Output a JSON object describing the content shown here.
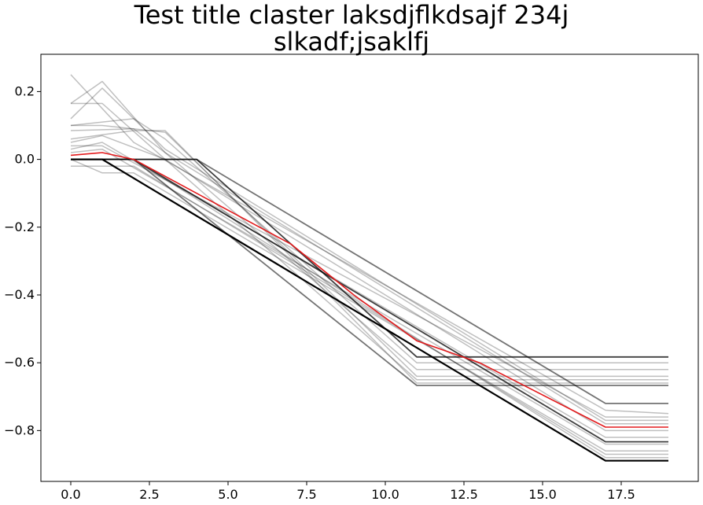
{
  "chart_data": {
    "type": "line",
    "title": [
      "Test title claster laksdjflkdsajf 234j",
      "slkadf;jsaklfj"
    ],
    "xlabel": "",
    "ylabel": "",
    "xlim": [
      -0.95,
      19.95
    ],
    "ylim": [
      -0.95,
      0.31
    ],
    "grid": false,
    "x_ticks": [
      0.0,
      2.5,
      5.0,
      7.5,
      10.0,
      12.5,
      15.0,
      17.5
    ],
    "x_tick_labels": [
      "0.0",
      "2.5",
      "5.0",
      "7.5",
      "10.0",
      "12.5",
      "15.0",
      "17.5"
    ],
    "y_ticks": [
      0.2,
      0.0,
      -0.2,
      -0.4,
      -0.6,
      -0.8
    ],
    "y_tick_labels": [
      "0.2",
      "0.0",
      "−0.2",
      "−0.4",
      "−0.6",
      "−0.8"
    ],
    "series": [
      {
        "color": "#000000",
        "opacity": 0.25,
        "width": 1.5,
        "points": [
          [
            0,
            0.25
          ],
          [
            2,
            0.05
          ],
          [
            17,
            -0.74
          ],
          [
            19,
            -0.75
          ]
        ]
      },
      {
        "color": "#000000",
        "opacity": 0.25,
        "width": 1.5,
        "points": [
          [
            0,
            0.165
          ],
          [
            1,
            0.23
          ],
          [
            3,
            0.02
          ],
          [
            17,
            -0.78
          ],
          [
            19,
            -0.78
          ]
        ]
      },
      {
        "color": "#000000",
        "opacity": 0.25,
        "width": 1.5,
        "points": [
          [
            0,
            0.165
          ],
          [
            1,
            0.165
          ],
          [
            3,
            0.0
          ],
          [
            17,
            -0.8
          ],
          [
            19,
            -0.8
          ]
        ]
      },
      {
        "color": "#000000",
        "opacity": 0.25,
        "width": 1.5,
        "points": [
          [
            0,
            0.12
          ],
          [
            1,
            0.21
          ],
          [
            3,
            0.03
          ],
          [
            17,
            -0.77
          ],
          [
            19,
            -0.77
          ]
        ]
      },
      {
        "color": "#000000",
        "opacity": 0.25,
        "width": 1.5,
        "points": [
          [
            0,
            0.1
          ],
          [
            1,
            0.1
          ],
          [
            3,
            0.08
          ],
          [
            11,
            -0.64
          ],
          [
            19,
            -0.64
          ]
        ]
      },
      {
        "color": "#000000",
        "opacity": 0.25,
        "width": 1.5,
        "points": [
          [
            0,
            0.1
          ],
          [
            2,
            0.12
          ],
          [
            3,
            0.06
          ],
          [
            11,
            -0.6
          ],
          [
            19,
            -0.6
          ]
        ]
      },
      {
        "color": "#000000",
        "opacity": 0.25,
        "width": 1.5,
        "points": [
          [
            0,
            0.085
          ],
          [
            2,
            0.09
          ],
          [
            3,
            0.02
          ],
          [
            11,
            -0.62
          ],
          [
            19,
            -0.62
          ]
        ]
      },
      {
        "color": "#000000",
        "opacity": 0.25,
        "width": 1.5,
        "points": [
          [
            0,
            0.06
          ],
          [
            2,
            0.085
          ],
          [
            3,
            0.085
          ],
          [
            11,
            -0.66
          ],
          [
            19,
            -0.66
          ]
        ]
      },
      {
        "color": "#000000",
        "opacity": 0.25,
        "width": 1.5,
        "points": [
          [
            0,
            0.05
          ],
          [
            1,
            0.07
          ],
          [
            3,
            0.0
          ],
          [
            11,
            -0.65
          ],
          [
            19,
            -0.65
          ]
        ]
      },
      {
        "color": "#000000",
        "opacity": 0.25,
        "width": 1.5,
        "points": [
          [
            0,
            0.03
          ],
          [
            1,
            0.05
          ],
          [
            17,
            -0.82
          ],
          [
            19,
            -0.82
          ]
        ]
      },
      {
        "color": "#000000",
        "opacity": 0.25,
        "width": 1.5,
        "points": [
          [
            0,
            0.02
          ],
          [
            1,
            0.03
          ],
          [
            17,
            -0.84
          ],
          [
            19,
            -0.84
          ]
        ]
      },
      {
        "color": "#000000",
        "opacity": 0.25,
        "width": 1.5,
        "points": [
          [
            0,
            0.0
          ],
          [
            1,
            -0.04
          ],
          [
            2,
            -0.04
          ],
          [
            17,
            -0.86
          ],
          [
            19,
            -0.86
          ]
        ]
      },
      {
        "color": "#000000",
        "opacity": 0.25,
        "width": 1.5,
        "points": [
          [
            0,
            0.0
          ],
          [
            2,
            0.0
          ],
          [
            17,
            -0.88
          ],
          [
            19,
            -0.88
          ]
        ]
      },
      {
        "color": "#000000",
        "opacity": 0.25,
        "width": 1.5,
        "points": [
          [
            0,
            -0.02
          ],
          [
            2,
            -0.02
          ],
          [
            17,
            -0.87
          ],
          [
            19,
            -0.87
          ]
        ]
      },
      {
        "color": "#000000",
        "opacity": 0.25,
        "width": 1.5,
        "points": [
          [
            0,
            0.04
          ],
          [
            1,
            0.04
          ],
          [
            17,
            -0.76
          ],
          [
            19,
            -0.76
          ]
        ]
      },
      {
        "color": "#000000",
        "opacity": 0.55,
        "width": 1.8,
        "points": [
          [
            0,
            0.0
          ],
          [
            4,
            0.0
          ],
          [
            17,
            -0.72
          ],
          [
            19,
            -0.72
          ]
        ]
      },
      {
        "color": "#000000",
        "opacity": 0.55,
        "width": 1.8,
        "points": [
          [
            0,
            0.0
          ],
          [
            2,
            0.0
          ],
          [
            11,
            -0.667
          ],
          [
            19,
            -0.667
          ]
        ]
      },
      {
        "color": "#000000",
        "opacity": 0.75,
        "width": 1.8,
        "points": [
          [
            0,
            0.0
          ],
          [
            4,
            0.0
          ],
          [
            11,
            -0.583
          ],
          [
            19,
            -0.583
          ]
        ]
      },
      {
        "color": "#000000",
        "opacity": 0.75,
        "width": 1.8,
        "points": [
          [
            0,
            0.0
          ],
          [
            2,
            0.0
          ],
          [
            17,
            -0.833
          ],
          [
            19,
            -0.833
          ]
        ]
      },
      {
        "color": "#000000",
        "opacity": 1.0,
        "width": 2.2,
        "points": [
          [
            0,
            0.0
          ],
          [
            1,
            0.0
          ],
          [
            17,
            -0.889
          ],
          [
            19,
            -0.889
          ]
        ]
      },
      {
        "color": "#e31a1c",
        "opacity": 1.0,
        "width": 1.6,
        "points": [
          [
            0,
            0.012
          ],
          [
            1,
            0.02
          ],
          [
            2,
            0.0
          ],
          [
            4,
            -0.1
          ],
          [
            7,
            -0.25
          ],
          [
            9,
            -0.4
          ],
          [
            11,
            -0.535
          ],
          [
            13,
            -0.6
          ],
          [
            17,
            -0.79
          ],
          [
            19,
            -0.79
          ]
        ]
      }
    ]
  }
}
